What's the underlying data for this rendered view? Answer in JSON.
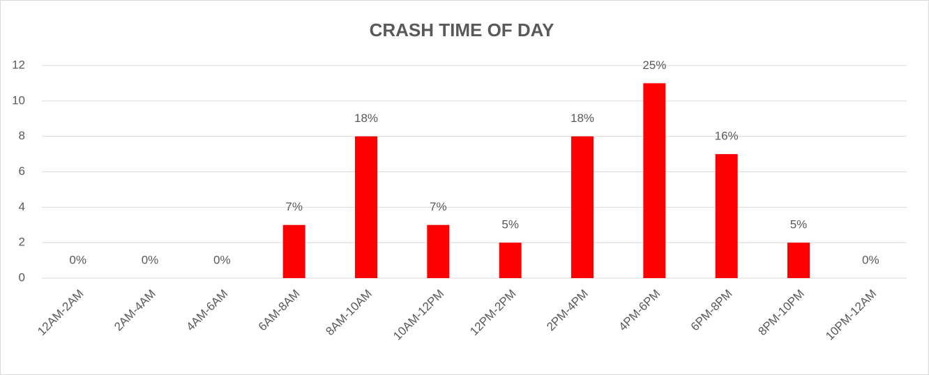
{
  "chart_data": {
    "type": "bar",
    "title": "CRASH TIME OF DAY",
    "categories": [
      "12AM-2AM",
      "2AM-4AM",
      "4AM-6AM",
      "6AM-8AM",
      "8AM-10AM",
      "10AM-12PM",
      "12PM-2PM",
      "2PM-4PM",
      "4PM-6PM",
      "6PM-8PM",
      "8PM-10PM",
      "10PM-12AM"
    ],
    "values": [
      0,
      0,
      0,
      3,
      8,
      3,
      2,
      8,
      11,
      7,
      2,
      0
    ],
    "value_labels": [
      "0%",
      "0%",
      "0%",
      "7%",
      "18%",
      "7%",
      "5%",
      "18%",
      "25%",
      "16%",
      "5%",
      "0%"
    ],
    "color": "#ff0000",
    "ylim": [
      0,
      12
    ],
    "yticks": [
      0,
      2,
      4,
      6,
      8,
      10,
      12
    ],
    "grid": true
  }
}
